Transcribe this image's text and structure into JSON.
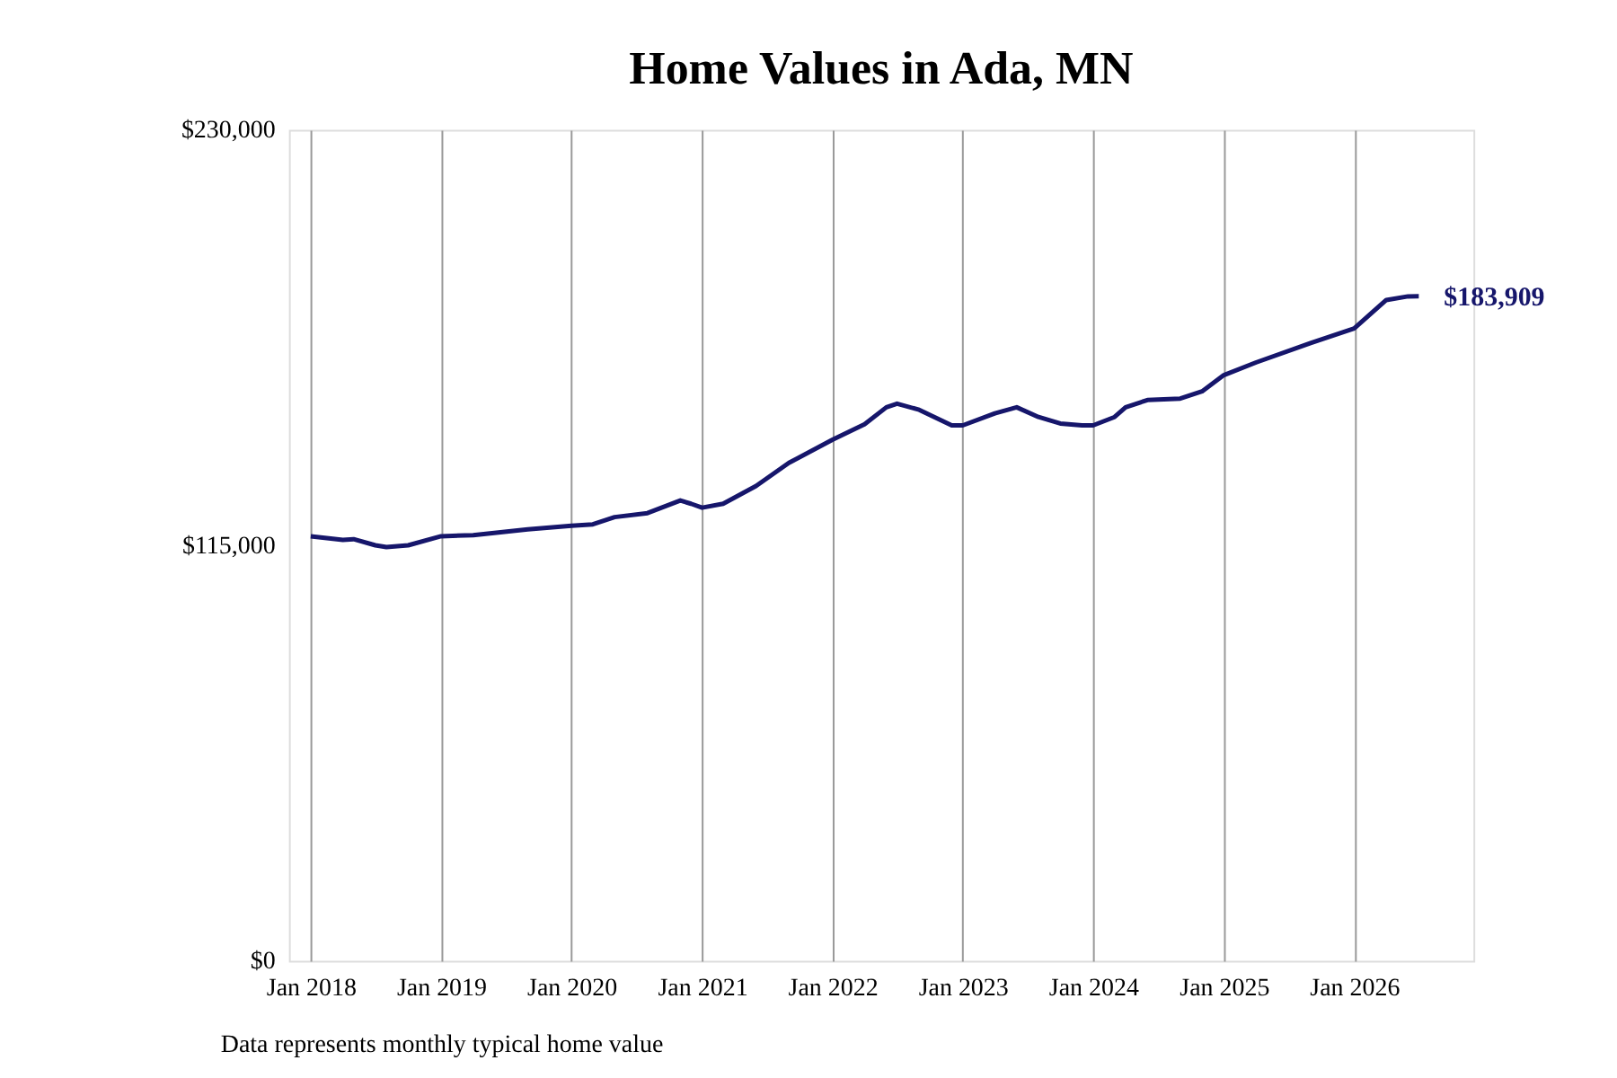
{
  "chart_data": {
    "type": "line",
    "title": "Home Values in Ada, MN",
    "x": [
      "2018-01",
      "2018-04",
      "2018-05",
      "2018-07",
      "2018-08",
      "2018-10",
      "2019-01",
      "2019-04",
      "2019-09",
      "2020-01",
      "2020-03",
      "2020-05",
      "2020-08",
      "2020-11",
      "2020-12",
      "2021-01",
      "2021-03",
      "2021-06",
      "2021-09",
      "2022-01",
      "2022-04",
      "2022-06",
      "2022-07",
      "2022-09",
      "2022-12",
      "2023-01",
      "2023-04",
      "2023-06",
      "2023-08",
      "2023-10",
      "2023-12",
      "2024-01",
      "2024-03",
      "2024-04",
      "2024-06",
      "2024-09",
      "2024-11",
      "2025-01",
      "2025-04",
      "2025-09",
      "2026-01",
      "2026-04",
      "2026-06",
      "2026-07"
    ],
    "series": [
      {
        "color": "#16166b",
        "values": [
          117500,
          116500,
          116700,
          115000,
          114500,
          115000,
          117500,
          117800,
          119400,
          120400,
          120800,
          122800,
          123900,
          127400,
          126500,
          125400,
          126500,
          131400,
          137800,
          144200,
          148500,
          153200,
          154200,
          152500,
          148200,
          148200,
          151500,
          153200,
          150500,
          148700,
          148200,
          148200,
          150500,
          153200,
          155200,
          155600,
          157600,
          162100,
          165600,
          171000,
          175000,
          182900,
          183900,
          183909
        ]
      }
    ],
    "xlim": [
      "2017-11",
      "2026-12"
    ],
    "xticks": [
      {
        "value": "2018-01",
        "label": "Jan 2018"
      },
      {
        "value": "2019-01",
        "label": "Jan 2019"
      },
      {
        "value": "2020-01",
        "label": "Jan 2020"
      },
      {
        "value": "2021-01",
        "label": "Jan 2021"
      },
      {
        "value": "2022-01",
        "label": "Jan 2022"
      },
      {
        "value": "2023-01",
        "label": "Jan 2023"
      },
      {
        "value": "2024-01",
        "label": "Jan 2024"
      },
      {
        "value": "2025-01",
        "label": "Jan 2025"
      },
      {
        "value": "2026-01",
        "label": "Jan 2026"
      }
    ],
    "ylim": [
      0,
      230000
    ],
    "yticks": [
      {
        "value": 0,
        "label": "$0"
      },
      {
        "value": 115000,
        "label": "$115,000"
      },
      {
        "value": 230000,
        "label": "$230,000"
      }
    ],
    "grid": "x",
    "marker": "none",
    "line_style": "solid",
    "annotations": [
      {
        "text": "$183,909",
        "x": "2026-07",
        "y": 183909
      },
      "Data represents monthly typical home value"
    ]
  }
}
